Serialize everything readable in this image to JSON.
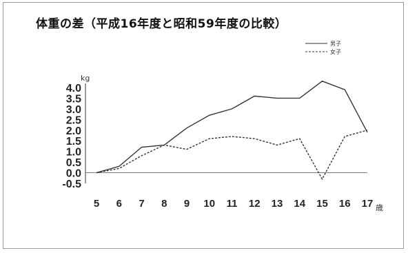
{
  "chart_data": {
    "type": "line",
    "title": "体重の差（平成16年度と昭和59年度の比較）",
    "ylabel": "kg",
    "xlabel": "歳",
    "x": [
      5,
      6,
      7,
      8,
      9,
      10,
      11,
      12,
      13,
      14,
      15,
      16,
      17
    ],
    "y_ticks": [
      "4.0",
      "3.5",
      "3.0",
      "2.5",
      "2.0",
      "1.5",
      "1.0",
      "0.5",
      "0.0",
      "-0.5"
    ],
    "ylim": [
      -0.5,
      4.0
    ],
    "series": [
      {
        "name": "男子",
        "style": "solid",
        "values": [
          0.0,
          0.3,
          1.2,
          1.3,
          2.1,
          2.7,
          3.0,
          3.6,
          3.5,
          3.5,
          4.3,
          3.9,
          1.9
        ]
      },
      {
        "name": "女子",
        "style": "dashed",
        "values": [
          0.0,
          0.2,
          0.8,
          1.3,
          1.1,
          1.6,
          1.7,
          1.6,
          1.3,
          1.6,
          -0.3,
          1.7,
          2.0
        ]
      }
    ],
    "colors": {
      "negative_tick": "#cc0000",
      "line": "#333333",
      "baseline": "#777777"
    },
    "legend_position": "top-right"
  }
}
